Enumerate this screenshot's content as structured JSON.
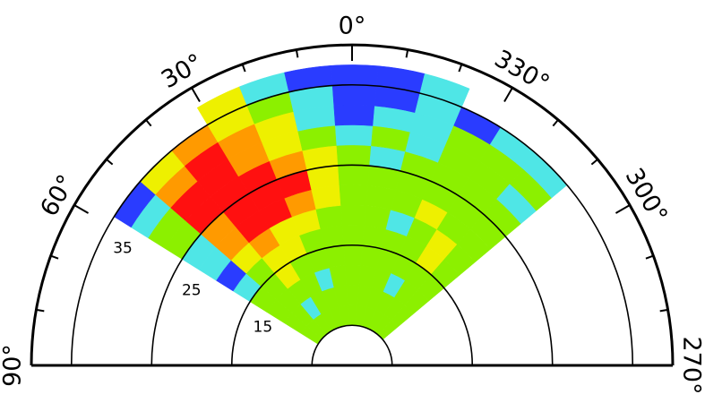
{
  "chart_data": {
    "type": "polar_heatmap",
    "theta_ticks": [
      {
        "value": 0,
        "label": "0°"
      },
      {
        "value": 30,
        "label": "30°"
      },
      {
        "value": 60,
        "label": "60°"
      },
      {
        "value": 90,
        "label": "90°"
      },
      {
        "value": -30,
        "label": "330°"
      },
      {
        "value": -60,
        "label": "300°"
      },
      {
        "value": -90,
        "label": "270°"
      }
    ],
    "theta_minor_ticks": [
      -80,
      -70,
      -50,
      -40,
      -20,
      -10,
      10,
      20,
      40,
      50,
      70,
      80
    ],
    "rlim": [
      0,
      40
    ],
    "rgrid": [
      5,
      15,
      25,
      35
    ],
    "rticks": [
      15,
      25,
      35
    ],
    "theta_edges": [
      58,
      49,
      40,
      31,
      22,
      13,
      4,
      -5,
      -14,
      -23,
      -32,
      -41,
      -50
    ],
    "r_edges": [
      5,
      7.5,
      10,
      12.5,
      15,
      17.5,
      20,
      22.5,
      25,
      27.5,
      30,
      32.5,
      35,
      37.5
    ],
    "colors": [
      "#2a3cff",
      "#4fe6e6",
      "#8cf000",
      "#eef000",
      "#ff9a00",
      "#ff1010"
    ],
    "values": [
      [
        2,
        2,
        2,
        2,
        2,
        2,
        2,
        2,
        2,
        2,
        2,
        2
      ],
      [
        2,
        2,
        1,
        2,
        2,
        2,
        2,
        2,
        2,
        2,
        2,
        2
      ],
      [
        2,
        2,
        2,
        2,
        1,
        2,
        2,
        2,
        2,
        1,
        2,
        2
      ],
      [
        2,
        2,
        3,
        2,
        2,
        2,
        2,
        2,
        2,
        2,
        2,
        2
      ],
      [
        1,
        2,
        3,
        3,
        2,
        2,
        2,
        2,
        2,
        2,
        3,
        2
      ],
      [
        0,
        3,
        4,
        3,
        3,
        2,
        2,
        2,
        1,
        2,
        3,
        2
      ],
      [
        1,
        4,
        5,
        5,
        4,
        3,
        2,
        2,
        2,
        3,
        2,
        2
      ],
      [
        1,
        4,
        5,
        5,
        5,
        3,
        2,
        2,
        2,
        2,
        2,
        2
      ],
      [
        2,
        5,
        5,
        5,
        4,
        3,
        2,
        1,
        2,
        2,
        2,
        2
      ],
      [
        2,
        5,
        5,
        4,
        3,
        2,
        1,
        2,
        1,
        2,
        2,
        1
      ],
      [
        1,
        4,
        5,
        4,
        3,
        1,
        0,
        1,
        1,
        2,
        2,
        2
      ],
      [
        0,
        3,
        4,
        3,
        2,
        1,
        0,
        0,
        1,
        0,
        1,
        1
      ],
      [
        null,
        null,
        null,
        3,
        1,
        0,
        0,
        0,
        1,
        null,
        null,
        null
      ]
    ]
  }
}
